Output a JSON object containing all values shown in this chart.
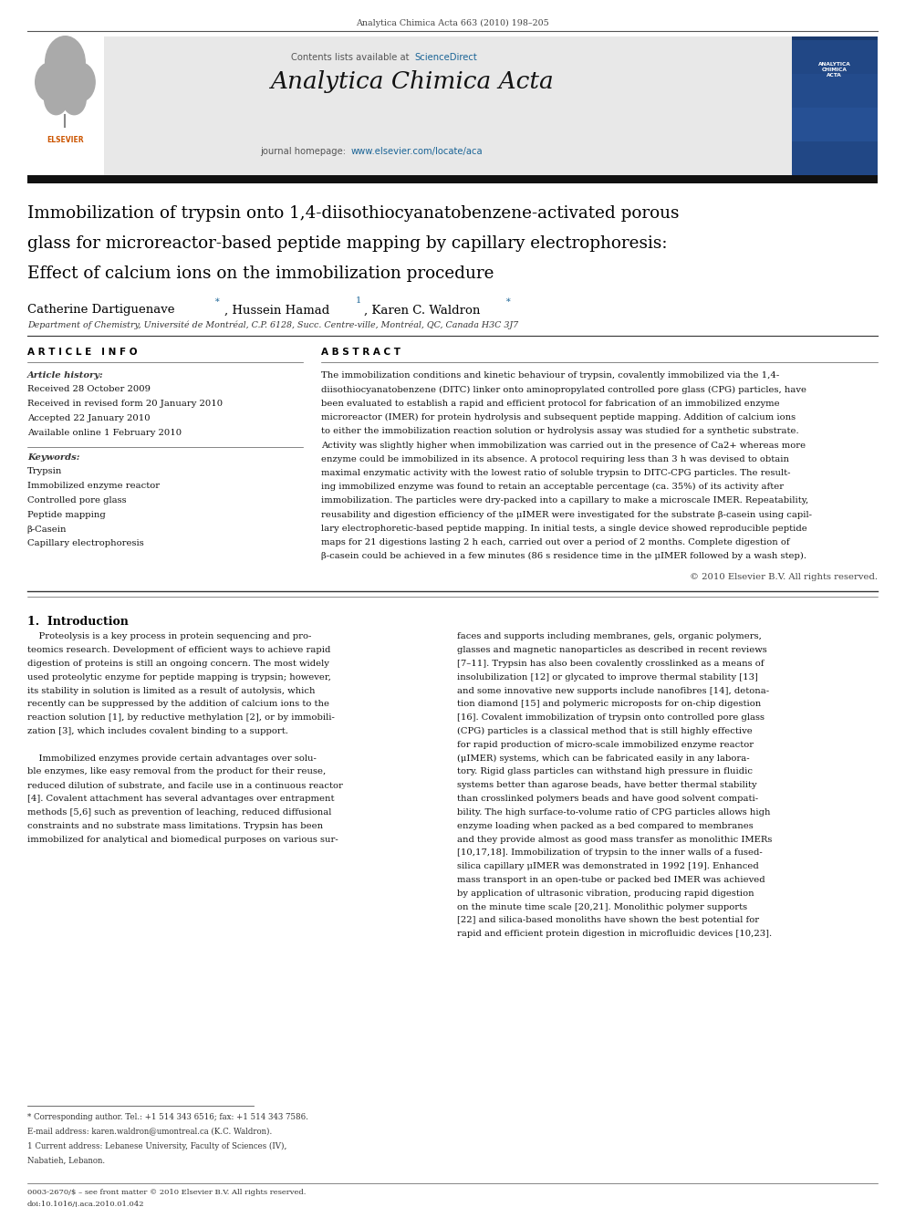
{
  "page_width": 9.92,
  "page_height": 13.23,
  "bg_color": "#ffffff",
  "journal_ref": "Analytica Chimica Acta 663 (2010) 198–205",
  "contents_text": "Contents lists available at ",
  "sciencedirect_text": "ScienceDirect",
  "sciencedirect_color": "#1a6496",
  "journal_name": "Analytica Chimica Acta",
  "journal_homepage_prefix": "journal homepage: ",
  "journal_homepage_url": "www.elsevier.com/locate/aca",
  "journal_homepage_color": "#1a6496",
  "header_bg": "#e8e8e8",
  "title_line1": "Immobilization of trypsin onto 1,4-diisothiocyanatobenzene-activated porous",
  "title_line2": "glass for microreactor-based peptide mapping by capillary electrophoresis:",
  "title_line3": "Effect of calcium ions on the immobilization procedure",
  "affiliation": "Department of Chemistry, Université de Montréal, C.P. 6128, Succ. Centre-ville, Montréal, QC, Canada H3C 3J7",
  "article_info_header": "A R T I C L E   I N F O",
  "abstract_header": "A B S T R A C T",
  "article_history_label": "Article history:",
  "received_date": "Received 28 October 2009",
  "revised_date": "Received in revised form 20 January 2010",
  "accepted_date": "Accepted 22 January 2010",
  "available_date": "Available online 1 February 2010",
  "keywords_label": "Keywords:",
  "keywords": [
    "Trypsin",
    "Immobilized enzyme reactor",
    "Controlled pore glass",
    "Peptide mapping",
    "β-Casein",
    "Capillary electrophoresis"
  ],
  "abstract_lines": [
    "The immobilization conditions and kinetic behaviour of trypsin, covalently immobilized via the 1,4-",
    "diisothiocyanatobenzene (DITC) linker onto aminopropylated controlled pore glass (CPG) particles, have",
    "been evaluated to establish a rapid and efficient protocol for fabrication of an immobilized enzyme",
    "microreactor (IMER) for protein hydrolysis and subsequent peptide mapping. Addition of calcium ions",
    "to either the immobilization reaction solution or hydrolysis assay was studied for a synthetic substrate.",
    "Activity was slightly higher when immobilization was carried out in the presence of Ca2+ whereas more",
    "enzyme could be immobilized in its absence. A protocol requiring less than 3 h was devised to obtain",
    "maximal enzymatic activity with the lowest ratio of soluble trypsin to DITC-CPG particles. The result-",
    "ing immobilized enzyme was found to retain an acceptable percentage (ca. 35%) of its activity after",
    "immobilization. The particles were dry-packed into a capillary to make a microscale IMER. Repeatability,",
    "reusability and digestion efficiency of the μIMER were investigated for the substrate β-casein using capil-",
    "lary electrophoretic-based peptide mapping. In initial tests, a single device showed reproducible peptide",
    "maps for 21 digestions lasting 2 h each, carried out over a period of 2 months. Complete digestion of",
    "β-casein could be achieved in a few minutes (86 s residence time in the μIMER followed by a wash step)."
  ],
  "copyright": "© 2010 Elsevier B.V. All rights reserved.",
  "intro_header": "1.  Introduction",
  "intro_col1_lines": [
    "    Proteolysis is a key process in protein sequencing and pro-",
    "teomics research. Development of efficient ways to achieve rapid",
    "digestion of proteins is still an ongoing concern. The most widely",
    "used proteolytic enzyme for peptide mapping is trypsin; however,",
    "its stability in solution is limited as a result of autolysis, which",
    "recently can be suppressed by the addition of calcium ions to the",
    "reaction solution [1], by reductive methylation [2], or by immobili-",
    "zation [3], which includes covalent binding to a support.",
    "",
    "    Immobilized enzymes provide certain advantages over solu-",
    "ble enzymes, like easy removal from the product for their reuse,",
    "reduced dilution of substrate, and facile use in a continuous reactor",
    "[4]. Covalent attachment has several advantages over entrapment",
    "methods [5,6] such as prevention of leaching, reduced diffusional",
    "constraints and no substrate mass limitations. Trypsin has been",
    "immobilized for analytical and biomedical purposes on various sur-"
  ],
  "intro_col2_lines": [
    "faces and supports including membranes, gels, organic polymers,",
    "glasses and magnetic nanoparticles as described in recent reviews",
    "[7–11]. Trypsin has also been covalently crosslinked as a means of",
    "insolubilization [12] or glycated to improve thermal stability [13]",
    "and some innovative new supports include nanofibres [14], detona-",
    "tion diamond [15] and polymeric microposts for on-chip digestion",
    "[16]. Covalent immobilization of trypsin onto controlled pore glass",
    "(CPG) particles is a classical method that is still highly effective",
    "for rapid production of micro-scale immobilized enzyme reactor",
    "(μIMER) systems, which can be fabricated easily in any labora-",
    "tory. Rigid glass particles can withstand high pressure in fluidic",
    "systems better than agarose beads, have better thermal stability",
    "than crosslinked polymers beads and have good solvent compati-",
    "bility. The high surface-to-volume ratio of CPG particles allows high",
    "enzyme loading when packed as a bed compared to membranes",
    "and they provide almost as good mass transfer as monolithic IMERs",
    "[10,17,18]. Immobilization of trypsin to the inner walls of a fused-",
    "silica capillary μIMER was demonstrated in 1992 [19]. Enhanced",
    "mass transport in an open-tube or packed bed IMER was achieved",
    "by application of ultrasonic vibration, producing rapid digestion",
    "on the minute time scale [20,21]. Monolithic polymer supports",
    "[22] and silica-based monoliths have shown the best potential for",
    "rapid and efficient protein digestion in microfluidic devices [10,23]."
  ],
  "footnote1": "* Corresponding author. Tel.: +1 514 343 6516; fax: +1 514 343 7586.",
  "footnote2": "E-mail address: karen.waldron@umontreal.ca (K.C. Waldron).",
  "footnote3": "1 Current address: Lebanese University, Faculty of Sciences (IV),",
  "footnote4": "Nabatieh, Lebanon.",
  "footer_text1": "0003-2670/$ – see front matter © 2010 Elsevier B.V. All rights reserved.",
  "footer_text2": "doi:10.1016/j.aca.2010.01.042"
}
